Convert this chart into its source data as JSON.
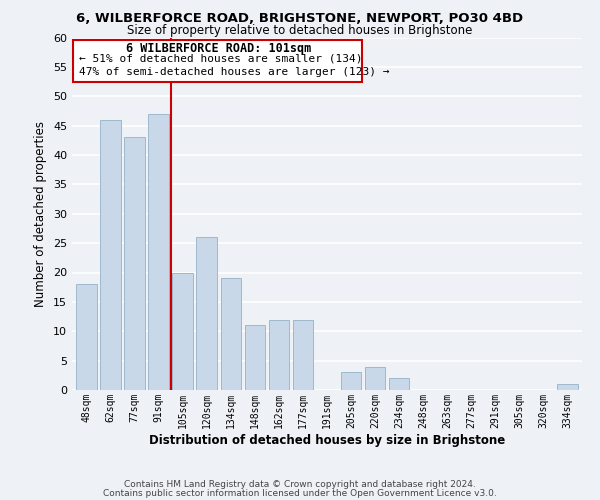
{
  "title": "6, WILBERFORCE ROAD, BRIGHSTONE, NEWPORT, PO30 4BD",
  "subtitle": "Size of property relative to detached houses in Brighstone",
  "xlabel": "Distribution of detached houses by size in Brighstone",
  "ylabel": "Number of detached properties",
  "footer_line1": "Contains HM Land Registry data © Crown copyright and database right 2024.",
  "footer_line2": "Contains public sector information licensed under the Open Government Licence v3.0.",
  "bar_labels": [
    "48sqm",
    "62sqm",
    "77sqm",
    "91sqm",
    "105sqm",
    "120sqm",
    "134sqm",
    "148sqm",
    "162sqm",
    "177sqm",
    "191sqm",
    "205sqm",
    "220sqm",
    "234sqm",
    "248sqm",
    "263sqm",
    "277sqm",
    "291sqm",
    "305sqm",
    "320sqm",
    "334sqm"
  ],
  "bar_values": [
    18,
    46,
    43,
    47,
    20,
    26,
    19,
    11,
    12,
    12,
    0,
    3,
    4,
    2,
    0,
    0,
    0,
    0,
    0,
    0,
    1
  ],
  "bar_color": "#c8d8e8",
  "bar_edge_color": "#a0b8cc",
  "vline_color": "#cc0000",
  "ylim": [
    0,
    60
  ],
  "yticks": [
    0,
    5,
    10,
    15,
    20,
    25,
    30,
    35,
    40,
    45,
    50,
    55,
    60
  ],
  "annotation_title": "6 WILBERFORCE ROAD: 101sqm",
  "annotation_line1": "← 51% of detached houses are smaller (134)",
  "annotation_line2": "47% of semi-detached houses are larger (123) →",
  "annotation_box_color": "#ffffff",
  "annotation_box_edge": "#cc0000",
  "bg_color": "#eef2f6",
  "grid_color": "#ffffff",
  "title_fontsize": 9.5,
  "subtitle_fontsize": 8.5
}
